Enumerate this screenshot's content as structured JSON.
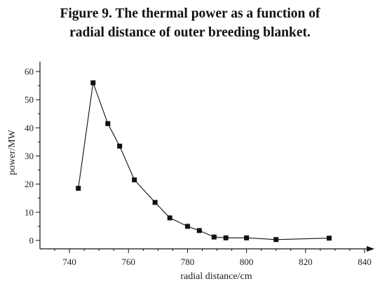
{
  "figure": {
    "title_line1": "Figure 9. The thermal power as a function of",
    "title_line2": "radial distance of outer breeding blanket."
  },
  "chart_data": {
    "type": "line",
    "title": "Figure 9. The thermal power as a function of radial distance of outer breeding blanket.",
    "xlabel": "radial distance/cm",
    "ylabel": "power/MW",
    "xlim": [
      730,
      840
    ],
    "ylim": [
      -3,
      63
    ],
    "xticks": [
      740,
      760,
      780,
      800,
      820,
      840
    ],
    "yticks": [
      0,
      10,
      20,
      30,
      40,
      50,
      60
    ],
    "grid": false,
    "marker": "square",
    "series": [
      {
        "x": [
          743,
          748,
          753,
          757,
          762,
          769,
          774,
          780,
          784,
          789,
          793,
          800,
          810,
          828
        ],
        "y": [
          18.5,
          56,
          41.5,
          33.5,
          21.5,
          13.5,
          8,
          5,
          3.5,
          1.2,
          0.9,
          0.9,
          0.3,
          0.8
        ]
      }
    ]
  }
}
